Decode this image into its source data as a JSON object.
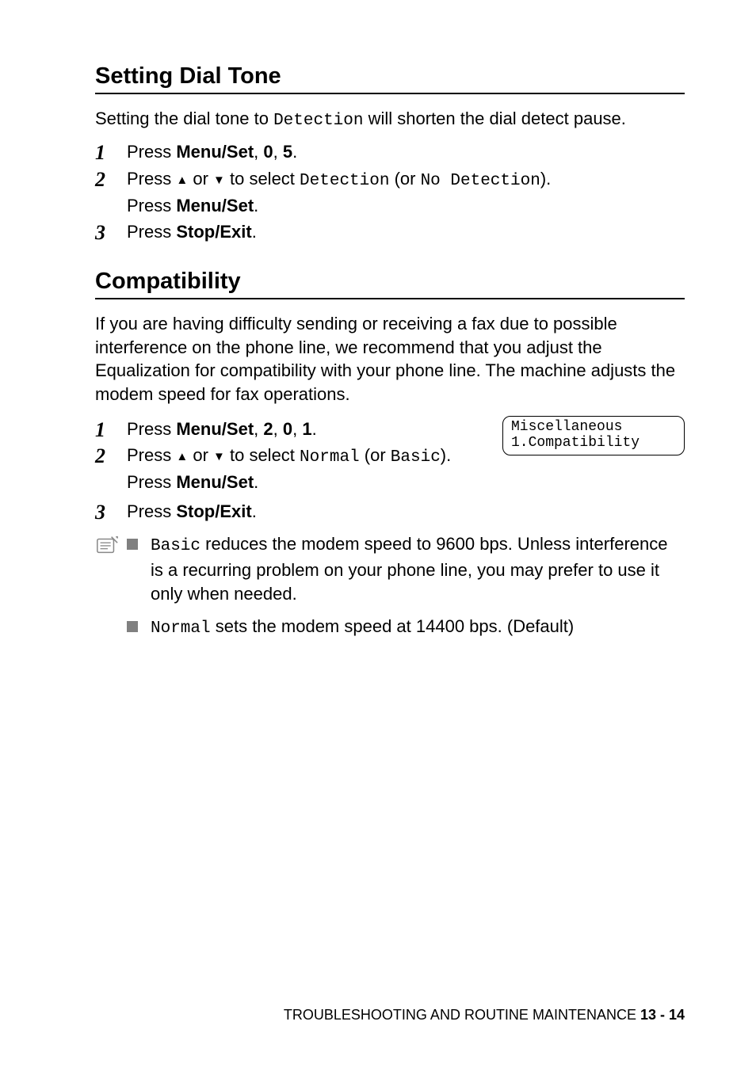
{
  "section1": {
    "heading": "Setting Dial Tone",
    "intro_pre": "Setting the dial tone to ",
    "intro_mono": "Detection",
    "intro_post": " will shorten the dial detect pause.",
    "steps": [
      {
        "num": "1",
        "parts": [
          {
            "t": "Press "
          },
          {
            "t": "Menu/Set",
            "bold": true
          },
          {
            "t": ", "
          },
          {
            "t": "0",
            "bold": true
          },
          {
            "t": ", "
          },
          {
            "t": "5",
            "bold": true
          },
          {
            "t": "."
          }
        ]
      },
      {
        "num": "2",
        "parts": [
          {
            "t": "Press "
          },
          {
            "t": "▲",
            "arrow": true
          },
          {
            "t": " or "
          },
          {
            "t": "▼",
            "arrow": true
          },
          {
            "t": " to select "
          },
          {
            "t": "Detection",
            "mono": true
          },
          {
            "t": " (or "
          },
          {
            "t": "No Detection",
            "mono": true
          },
          {
            "t": ")."
          }
        ],
        "sub": [
          {
            "t": "Press "
          },
          {
            "t": "Menu/Set",
            "bold": true
          },
          {
            "t": "."
          }
        ]
      },
      {
        "num": "3",
        "parts": [
          {
            "t": "Press "
          },
          {
            "t": "Stop/Exit",
            "bold": true
          },
          {
            "t": "."
          }
        ]
      }
    ]
  },
  "section2": {
    "heading": "Compatibility",
    "intro": "If you are having difficulty sending or receiving a fax due to possible interference on the phone line, we recommend that you adjust the Equalization for compatibility with your phone line. The machine adjusts the modem speed for fax operations.",
    "display": {
      "line1": "Miscellaneous",
      "line2": "1.Compatibility"
    },
    "steps_left": [
      {
        "num": "1",
        "parts": [
          {
            "t": "Press "
          },
          {
            "t": "Menu/Set",
            "bold": true
          },
          {
            "t": ", "
          },
          {
            "t": "2",
            "bold": true
          },
          {
            "t": ", "
          },
          {
            "t": "0",
            "bold": true
          },
          {
            "t": ", "
          },
          {
            "t": "1",
            "bold": true
          },
          {
            "t": "."
          }
        ]
      },
      {
        "num": "2",
        "parts": [
          {
            "t": "Press "
          },
          {
            "t": "▲",
            "arrow": true
          },
          {
            "t": " or "
          },
          {
            "t": "▼",
            "arrow": true
          },
          {
            "t": " to select "
          },
          {
            "t": "Normal",
            "mono": true
          },
          {
            "t": " (or "
          },
          {
            "t": "Basic",
            "mono": true
          },
          {
            "t": ")."
          }
        ],
        "sub": [
          {
            "t": "Press "
          },
          {
            "t": "Menu/Set",
            "bold": true
          },
          {
            "t": "."
          }
        ]
      }
    ],
    "step3": {
      "num": "3",
      "parts": [
        {
          "t": "Press "
        },
        {
          "t": "Stop/Exit",
          "bold": true
        },
        {
          "t": "."
        }
      ]
    },
    "notes": [
      [
        {
          "t": "Basic",
          "mono": true
        },
        {
          "t": " reduces the modem speed to 9600 bps. Unless interference is a recurring problem on your phone line, you may prefer to use it only when needed."
        }
      ],
      [
        {
          "t": "Normal",
          "mono": true
        },
        {
          "t": " sets the modem speed at 14400 bps. (Default)"
        }
      ]
    ]
  },
  "footer": {
    "label": "TROUBLESHOOTING AND ROUTINE MAINTENANCE   ",
    "page": "13 - 14"
  }
}
